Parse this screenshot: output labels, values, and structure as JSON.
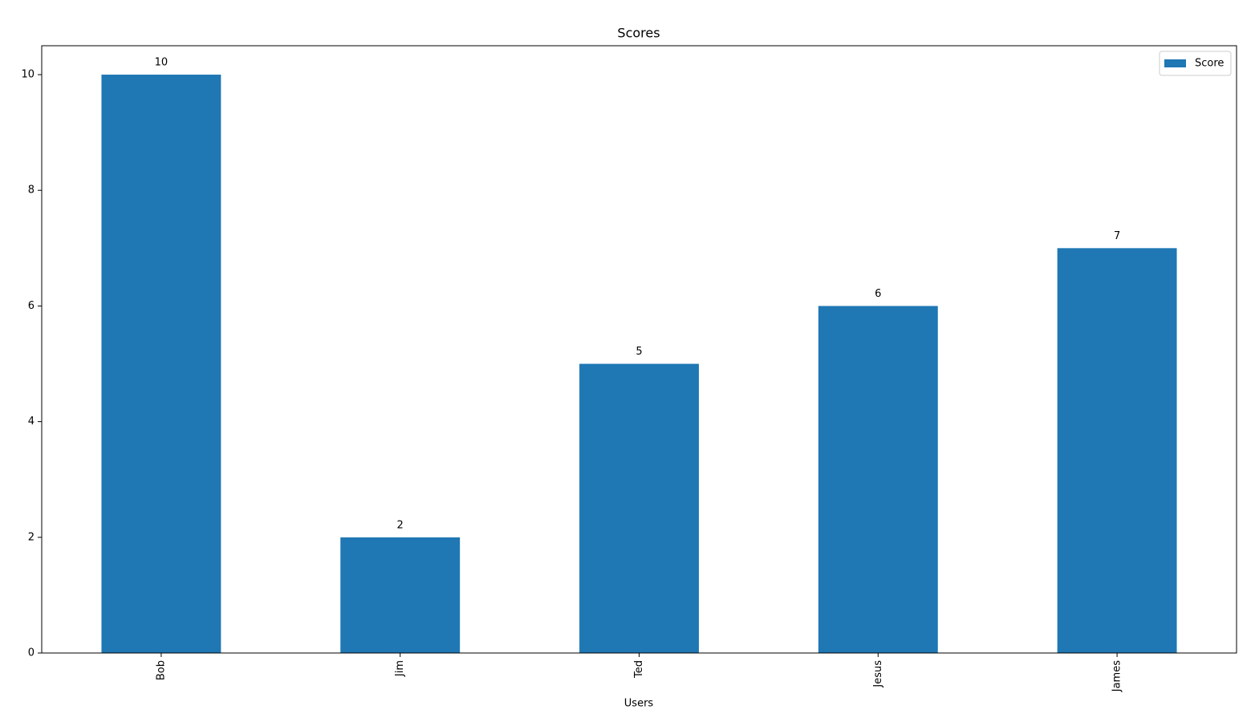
{
  "chart_data": {
    "type": "bar",
    "title": "Scores",
    "x_label": "Users",
    "categories": [
      "Bob",
      "Jim",
      "Ted",
      "Jesus",
      "James"
    ],
    "series": [
      {
        "name": "Score",
        "color": "#1f77b4",
        "values": [
          10,
          2,
          5,
          6,
          7
        ]
      }
    ],
    "ylim": [
      0,
      10.5
    ],
    "yticks": [
      0,
      2,
      4,
      6,
      8,
      10
    ],
    "grid": false,
    "legend": "upper right",
    "data_labels": true
  }
}
